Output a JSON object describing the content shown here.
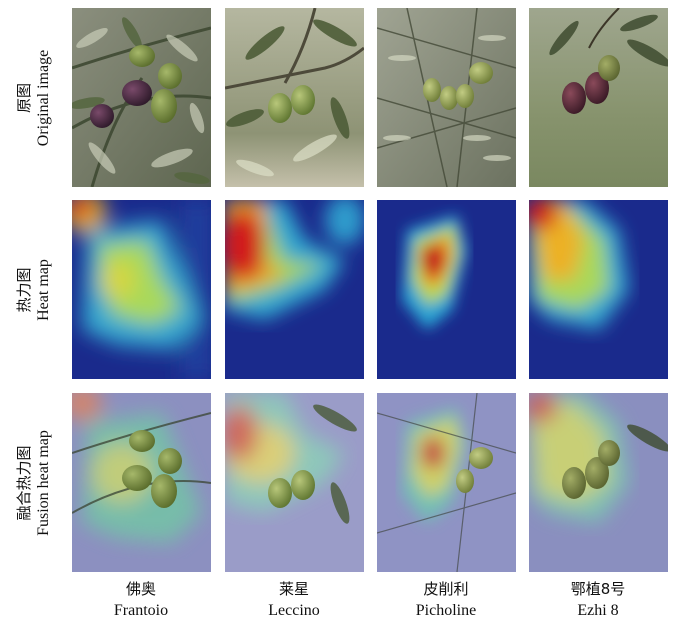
{
  "rows": [
    {
      "zh": "原图",
      "en": "Original image"
    },
    {
      "zh": "热力图",
      "en": "Heat map"
    },
    {
      "zh": "融合热力图",
      "en": "Fusion heat map"
    }
  ],
  "columns": [
    {
      "zh": "佛奥",
      "en": "Frantoio"
    },
    {
      "zh": "莱星",
      "en": "Leccino"
    },
    {
      "zh": "皮削利",
      "en": "Picholine"
    },
    {
      "zh": "鄂植8号",
      "en": "Ezhi 8"
    }
  ],
  "colors": {
    "heat_low": "#1a2a8c",
    "heat_mid": "#36c3d6",
    "heat_high": "#d11f1f",
    "foliage": "#6b7a5a",
    "olive_green": "#7f9a4a",
    "olive_purple": "#5a2a3a"
  }
}
